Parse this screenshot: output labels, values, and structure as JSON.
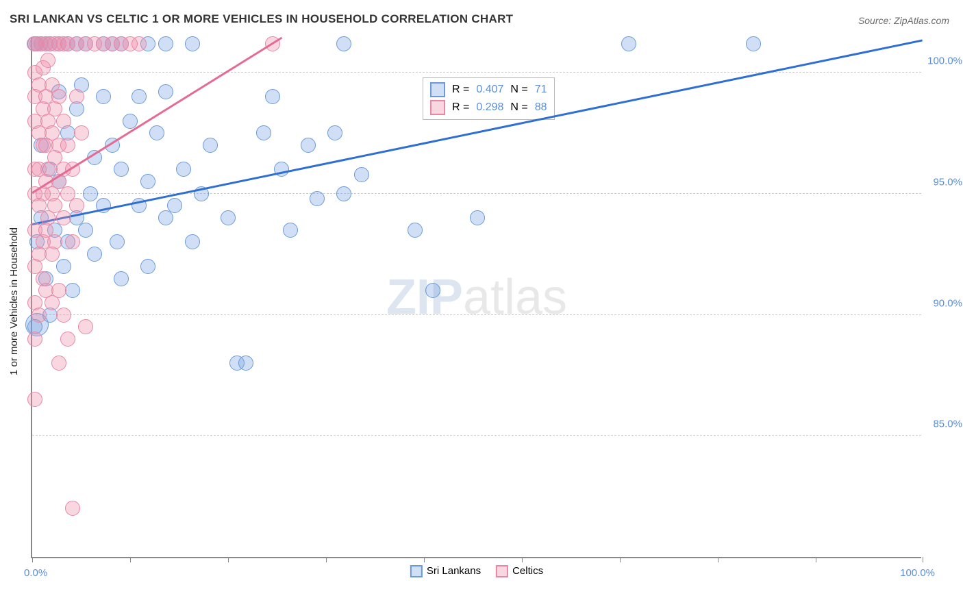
{
  "title": "SRI LANKAN VS CELTIC 1 OR MORE VEHICLES IN HOUSEHOLD CORRELATION CHART",
  "title_color": "#333333",
  "source": "Source: ZipAtlas.com",
  "y_axis_label": "1 or more Vehicles in Household",
  "watermark_zip": "ZIP",
  "watermark_rest": "atlas",
  "chart": {
    "type": "scatter",
    "plot_bg": "#ffffff",
    "grid_color": "#cccccc",
    "axis_color": "#888888",
    "xlim": [
      0,
      100
    ],
    "ylim": [
      80,
      101.5
    ],
    "x_ticks": [
      0,
      11,
      22,
      33,
      44,
      55,
      66,
      77,
      88,
      100
    ],
    "x_min_label": "0.0%",
    "x_max_label": "100.0%",
    "y_gridlines": [
      85,
      90,
      95,
      100
    ],
    "y_tick_labels": [
      "85.0%",
      "90.0%",
      "95.0%",
      "100.0%"
    ],
    "tick_label_color": "#5b8dd6",
    "tick_label_fontsize": 15,
    "marker_radius": 11,
    "marker_radius_large": 17,
    "series": [
      {
        "name": "Sri Lankans",
        "fill": "rgba(120,164,225,0.35)",
        "stroke": "#6a9ad8",
        "line_color": "#2e6fd1",
        "r_value": "0.407",
        "n_value": "71",
        "trend": {
          "x1": 0,
          "y1": 93.7,
          "x2": 100,
          "y2": 101.3
        },
        "points": [
          [
            0.3,
            101.2
          ],
          [
            0.5,
            101.2
          ],
          [
            1,
            101.2
          ],
          [
            1.5,
            101.2
          ],
          [
            2,
            101.2
          ],
          [
            3,
            101.2
          ],
          [
            4,
            101.2
          ],
          [
            5,
            101.2
          ],
          [
            6,
            101.2
          ],
          [
            8,
            101.2
          ],
          [
            9,
            101.2
          ],
          [
            10,
            101.2
          ],
          [
            13,
            101.2
          ],
          [
            15,
            101.2
          ],
          [
            18,
            101.2
          ],
          [
            35,
            101.2
          ],
          [
            67,
            101.2
          ],
          [
            81,
            101.2
          ],
          [
            0.3,
            89.5
          ],
          [
            0.5,
            93.0
          ],
          [
            1,
            94.0
          ],
          [
            1,
            97.0
          ],
          [
            1.5,
            91.5
          ],
          [
            2,
            90.0
          ],
          [
            2,
            96.0
          ],
          [
            2.5,
            93.5
          ],
          [
            3,
            99.2
          ],
          [
            3,
            95.5
          ],
          [
            3.5,
            92.0
          ],
          [
            4,
            97.5
          ],
          [
            4,
            93.0
          ],
          [
            4.5,
            91.0
          ],
          [
            5,
            98.5
          ],
          [
            5,
            94.0
          ],
          [
            5.5,
            99.5
          ],
          [
            6,
            93.5
          ],
          [
            6.5,
            95.0
          ],
          [
            7,
            96.5
          ],
          [
            7,
            92.5
          ],
          [
            8,
            99.0
          ],
          [
            8,
            94.5
          ],
          [
            9,
            97.0
          ],
          [
            9.5,
            93.0
          ],
          [
            10,
            96.0
          ],
          [
            10,
            91.5
          ],
          [
            11,
            98.0
          ],
          [
            12,
            94.5
          ],
          [
            12,
            99.0
          ],
          [
            13,
            95.5
          ],
          [
            13,
            92.0
          ],
          [
            14,
            97.5
          ],
          [
            15,
            94.0
          ],
          [
            15,
            99.2
          ],
          [
            16,
            94.5
          ],
          [
            17,
            96.0
          ],
          [
            18,
            93.0
          ],
          [
            19,
            95.0
          ],
          [
            20,
            97.0
          ],
          [
            22,
            94.0
          ],
          [
            23,
            88.0
          ],
          [
            24,
            88.0
          ],
          [
            26,
            97.5
          ],
          [
            27,
            99.0
          ],
          [
            28,
            96.0
          ],
          [
            29,
            93.5
          ],
          [
            31,
            97.0
          ],
          [
            32,
            94.8
          ],
          [
            34,
            97.5
          ],
          [
            35,
            95.0
          ],
          [
            37,
            95.8
          ],
          [
            43,
            93.5
          ],
          [
            45,
            91.0
          ],
          [
            50,
            94.0
          ]
        ],
        "large_points": [
          [
            0.5,
            89.6
          ]
        ]
      },
      {
        "name": "Celtics",
        "fill": "rgba(239,140,170,0.35)",
        "stroke": "#e887a5",
        "line_color": "#e36b94",
        "r_value": "0.298",
        "n_value": "88",
        "trend": {
          "x1": 0,
          "y1": 95.0,
          "x2": 28,
          "y2": 101.4
        },
        "points": [
          [
            0.2,
            101.2
          ],
          [
            0.5,
            101.2
          ],
          [
            1,
            101.2
          ],
          [
            1.5,
            101.2
          ],
          [
            2,
            101.2
          ],
          [
            2.5,
            101.2
          ],
          [
            3,
            101.2
          ],
          [
            3.5,
            101.2
          ],
          [
            4,
            101.2
          ],
          [
            5,
            101.2
          ],
          [
            6,
            101.2
          ],
          [
            7,
            101.2
          ],
          [
            8,
            101.2
          ],
          [
            9,
            101.2
          ],
          [
            10,
            101.2
          ],
          [
            11,
            101.2
          ],
          [
            12,
            101.2
          ],
          [
            27,
            101.2
          ],
          [
            0.3,
            100.0
          ],
          [
            0.3,
            99.0
          ],
          [
            0.3,
            98.0
          ],
          [
            0.3,
            96.0
          ],
          [
            0.3,
            95.0
          ],
          [
            0.3,
            93.5
          ],
          [
            0.3,
            92.0
          ],
          [
            0.3,
            90.5
          ],
          [
            0.3,
            89.0
          ],
          [
            0.3,
            86.5
          ],
          [
            0.8,
            99.5
          ],
          [
            0.8,
            97.5
          ],
          [
            0.8,
            96.0
          ],
          [
            0.8,
            94.5
          ],
          [
            0.8,
            92.5
          ],
          [
            0.8,
            90.0
          ],
          [
            1.2,
            100.2
          ],
          [
            1.2,
            98.5
          ],
          [
            1.2,
            97.0
          ],
          [
            1.2,
            95.0
          ],
          [
            1.2,
            93.0
          ],
          [
            1.2,
            91.5
          ],
          [
            1.5,
            99.0
          ],
          [
            1.5,
            97.0
          ],
          [
            1.5,
            95.5
          ],
          [
            1.5,
            93.5
          ],
          [
            1.5,
            91.0
          ],
          [
            1.8,
            100.5
          ],
          [
            1.8,
            98.0
          ],
          [
            1.8,
            96.0
          ],
          [
            1.8,
            94.0
          ],
          [
            2.2,
            99.5
          ],
          [
            2.2,
            97.5
          ],
          [
            2.2,
            95.0
          ],
          [
            2.2,
            92.5
          ],
          [
            2.2,
            90.5
          ],
          [
            2.5,
            98.5
          ],
          [
            2.5,
            96.5
          ],
          [
            2.5,
            94.5
          ],
          [
            2.5,
            93.0
          ],
          [
            3,
            99.0
          ],
          [
            3,
            97.0
          ],
          [
            3,
            95.5
          ],
          [
            3,
            91.0
          ],
          [
            3,
            88.0
          ],
          [
            3.5,
            98.0
          ],
          [
            3.5,
            96.0
          ],
          [
            3.5,
            94.0
          ],
          [
            3.5,
            90.0
          ],
          [
            4,
            97.0
          ],
          [
            4,
            95.0
          ],
          [
            4,
            89.0
          ],
          [
            4.5,
            96.0
          ],
          [
            4.5,
            93.0
          ],
          [
            5,
            99.0
          ],
          [
            5,
            94.5
          ],
          [
            5.5,
            97.5
          ],
          [
            6,
            89.5
          ],
          [
            4.5,
            82.0
          ]
        ]
      }
    ]
  },
  "legend_top": {
    "r_label": "R =",
    "n_label": "N ="
  },
  "legend_bottom": {
    "label1": "Sri Lankans",
    "label2": "Celtics"
  }
}
